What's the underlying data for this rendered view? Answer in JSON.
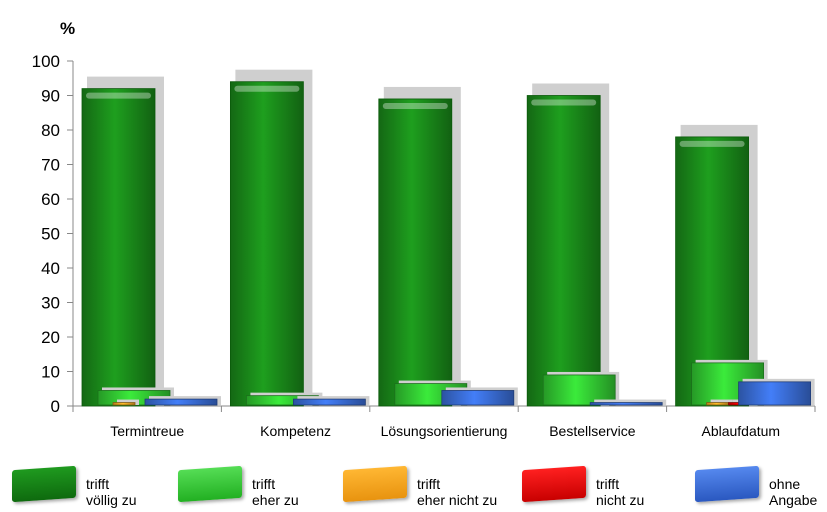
{
  "chart_data": {
    "type": "bar",
    "unit": "%",
    "categories": [
      "Termintreue",
      "Kompetenz",
      "Lösungsorientierung",
      "Bestellservice",
      "Ablaufdatum"
    ],
    "series": [
      {
        "name": "trifft völlig zu",
        "color": "#1a8a1a",
        "values": [
          92,
          94,
          89,
          90,
          78
        ]
      },
      {
        "name": "trifft eher zu",
        "color": "#33cc33",
        "values": [
          4.5,
          3,
          6.5,
          9,
          12.5
        ]
      },
      {
        "name": "trifft eher nicht zu",
        "color": "#f5a623",
        "values": [
          1,
          0,
          0,
          0,
          1
        ]
      },
      {
        "name": "trifft nicht zu",
        "color": "#e60000",
        "values": [
          0,
          0,
          0,
          0,
          1
        ]
      },
      {
        "name": "ohne Angabe",
        "color": "#3a6ed8",
        "values": [
          2,
          2,
          4.5,
          1,
          7
        ]
      }
    ],
    "yticks": [
      0,
      10,
      20,
      30,
      40,
      50,
      60,
      70,
      80,
      90,
      100
    ],
    "ylim": [
      0,
      100
    ],
    "grid": false,
    "legend_position": "bottom"
  },
  "legend": [
    {
      "line1": "trifft",
      "line2": "völlig zu",
      "color": "#137a13",
      "icon": "green-dark-swatch"
    },
    {
      "line1": "trifft",
      "line2": "eher zu",
      "color": "#33cc33",
      "icon": "green-light-swatch"
    },
    {
      "line1": "trifft",
      "line2": "eher nicht zu",
      "color": "#f5a623",
      "icon": "orange-swatch"
    },
    {
      "line1": "trifft",
      "line2": "nicht zu",
      "color": "#e60000",
      "icon": "red-swatch"
    },
    {
      "line1": "ohne",
      "line2": "Angabe",
      "color": "#3a6ed8",
      "icon": "blue-swatch"
    }
  ]
}
